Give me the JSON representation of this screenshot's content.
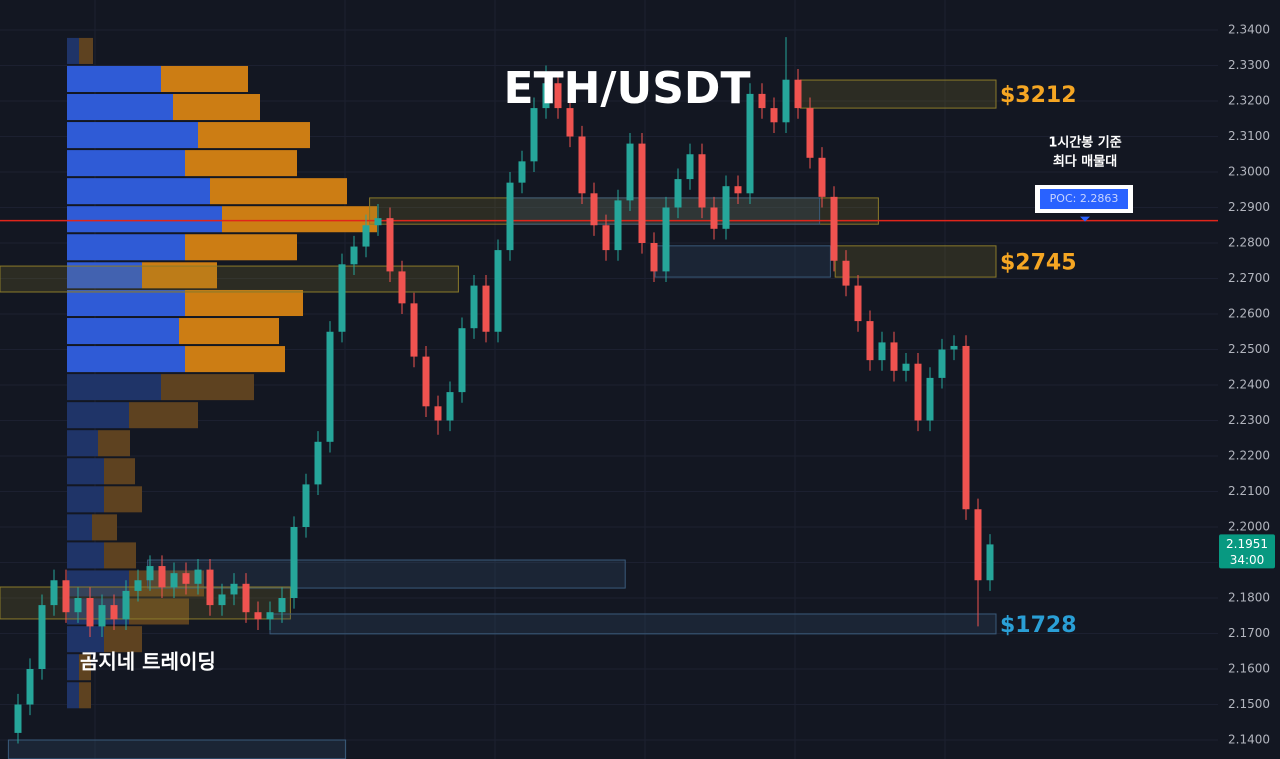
{
  "chart_data": {
    "type": "candlestick",
    "title": "ETH/USDT",
    "watermark": "곰지네 트레이딩",
    "up_color": "#26a69a",
    "down_color": "#ef5350",
    "ylim": [
      2.13465,
      2.34845
    ],
    "yticks": [
      {
        "value": 2.34,
        "label": "2.3400"
      },
      {
        "value": 2.33,
        "label": "2.3300"
      },
      {
        "value": 2.32,
        "label": "2.3200"
      },
      {
        "value": 2.31,
        "label": "2.3100"
      },
      {
        "value": 2.3,
        "label": "2.3000"
      },
      {
        "value": 2.29,
        "label": "2.2900"
      },
      {
        "value": 2.28,
        "label": "2.2800"
      },
      {
        "value": 2.27,
        "label": "2.2700"
      },
      {
        "value": 2.26,
        "label": "2.2600"
      },
      {
        "value": 2.25,
        "label": "2.2500"
      },
      {
        "value": 2.24,
        "label": "2.2400"
      },
      {
        "value": 2.23,
        "label": "2.2300"
      },
      {
        "value": 2.22,
        "label": "2.2200"
      },
      {
        "value": 2.21,
        "label": "2.2100"
      },
      {
        "value": 2.2,
        "label": "2.2000"
      },
      {
        "value": 2.19,
        "label": "2.1900"
      },
      {
        "value": 2.18,
        "label": "2.1800"
      },
      {
        "value": 2.17,
        "label": "2.1700"
      },
      {
        "value": 2.16,
        "label": "2.1600"
      },
      {
        "value": 2.15,
        "label": "2.1500"
      },
      {
        "value": 2.14,
        "label": "2.1400"
      }
    ],
    "grid": true,
    "open": [
      2.142,
      2.15,
      2.16,
      2.178,
      2.185,
      2.176,
      2.18,
      2.172,
      2.178,
      2.174,
      2.182,
      2.185,
      2.189,
      2.183,
      2.187,
      2.184,
      2.188,
      2.178,
      2.181,
      2.184,
      2.176,
      2.174,
      2.176,
      2.18,
      2.2,
      2.212,
      2.224,
      2.255,
      2.274,
      2.279,
      2.285,
      2.287,
      2.272,
      2.263,
      2.248,
      2.234,
      2.23,
      2.238,
      2.256,
      2.268,
      2.255,
      2.278,
      2.297,
      2.303,
      2.318,
      2.325,
      2.318,
      2.31,
      2.294,
      2.285,
      2.278,
      2.292,
      2.308,
      2.28,
      2.272,
      2.29,
      2.298,
      2.305,
      2.29,
      2.284,
      2.296,
      2.294,
      2.322,
      2.318,
      2.314,
      2.326,
      2.318,
      2.304,
      2.293,
      2.275,
      2.268,
      2.258,
      2.247,
      2.252,
      2.244,
      2.246,
      2.23,
      2.242,
      2.25,
      2.251,
      2.205,
      2.185
    ],
    "high": [
      2.153,
      2.163,
      2.181,
      2.188,
      2.188,
      2.183,
      2.183,
      2.181,
      2.181,
      2.185,
      2.188,
      2.192,
      2.192,
      2.19,
      2.19,
      2.191,
      2.191,
      2.184,
      2.187,
      2.187,
      2.179,
      2.179,
      2.183,
      2.203,
      2.215,
      2.227,
      2.258,
      2.277,
      2.282,
      2.288,
      2.291,
      2.29,
      2.275,
      2.266,
      2.251,
      2.237,
      2.241,
      2.259,
      2.271,
      2.271,
      2.281,
      2.3,
      2.306,
      2.321,
      2.33,
      2.328,
      2.321,
      2.313,
      2.297,
      2.288,
      2.295,
      2.311,
      2.311,
      2.283,
      2.293,
      2.301,
      2.308,
      2.308,
      2.293,
      2.299,
      2.299,
      2.325,
      2.325,
      2.321,
      2.338,
      2.329,
      2.321,
      2.307,
      2.296,
      2.278,
      2.271,
      2.261,
      2.255,
      2.255,
      2.249,
      2.249,
      2.245,
      2.253,
      2.254,
      2.254,
      2.208,
      2.198
    ],
    "low": [
      2.139,
      2.147,
      2.157,
      2.175,
      2.173,
      2.173,
      2.169,
      2.169,
      2.171,
      2.171,
      2.179,
      2.182,
      2.18,
      2.18,
      2.181,
      2.181,
      2.175,
      2.175,
      2.178,
      2.173,
      2.171,
      2.171,
      2.173,
      2.177,
      2.197,
      2.209,
      2.221,
      2.252,
      2.271,
      2.276,
      2.282,
      2.269,
      2.26,
      2.245,
      2.231,
      2.226,
      2.227,
      2.235,
      2.253,
      2.252,
      2.252,
      2.275,
      2.294,
      2.3,
      2.315,
      2.315,
      2.307,
      2.291,
      2.282,
      2.275,
      2.275,
      2.289,
      2.277,
      2.269,
      2.269,
      2.287,
      2.295,
      2.287,
      2.281,
      2.281,
      2.291,
      2.291,
      2.315,
      2.311,
      2.311,
      2.315,
      2.301,
      2.29,
      2.272,
      2.265,
      2.255,
      2.244,
      2.244,
      2.241,
      2.241,
      2.227,
      2.227,
      2.239,
      2.247,
      2.202,
      2.172,
      2.182
    ],
    "close": [
      2.15,
      2.16,
      2.178,
      2.185,
      2.176,
      2.18,
      2.172,
      2.178,
      2.174,
      2.182,
      2.185,
      2.189,
      2.183,
      2.187,
      2.184,
      2.188,
      2.178,
      2.181,
      2.184,
      2.176,
      2.174,
      2.176,
      2.18,
      2.2,
      2.212,
      2.224,
      2.255,
      2.274,
      2.279,
      2.285,
      2.287,
      2.272,
      2.263,
      2.248,
      2.234,
      2.23,
      2.238,
      2.256,
      2.268,
      2.255,
      2.278,
      2.297,
      2.303,
      2.318,
      2.325,
      2.318,
      2.31,
      2.294,
      2.285,
      2.278,
      2.292,
      2.308,
      2.28,
      2.272,
      2.29,
      2.298,
      2.305,
      2.29,
      2.284,
      2.296,
      2.294,
      2.322,
      2.318,
      2.314,
      2.326,
      2.318,
      2.304,
      2.293,
      2.275,
      2.268,
      2.258,
      2.247,
      2.252,
      2.244,
      2.246,
      2.23,
      2.242,
      2.25,
      2.251,
      2.205,
      2.185,
      2.1951
    ],
    "volume_profile": {
      "levels": [
        2.3341,
        2.3262,
        2.3183,
        2.3104,
        2.3025,
        2.2946,
        2.2867,
        2.2788,
        2.2709,
        2.2631,
        2.2552,
        2.2473,
        2.2394,
        2.2315,
        2.2236,
        2.2157,
        2.2078,
        2.1999,
        2.192,
        2.1841,
        2.1762,
        2.1684,
        2.1605,
        2.1526
      ],
      "buy": [
        12,
        94,
        106,
        131,
        118,
        143,
        155,
        118,
        75,
        118,
        112,
        118,
        94,
        62,
        31,
        37,
        37,
        25,
        37,
        62,
        62,
        37,
        12,
        12
      ],
      "sell": [
        14,
        87,
        87,
        112,
        112,
        137,
        155,
        112,
        75,
        118,
        100,
        100,
        93,
        69,
        32,
        31,
        38,
        25,
        32,
        75,
        60,
        38,
        12,
        12
      ],
      "buy_color": "#2f5bd6",
      "sell_color": "#cc7d14",
      "buy_color_dim": "#1f3468",
      "sell_color_dim": "#5e4220",
      "value_area": [
        1,
        11
      ]
    },
    "zones": [
      {
        "x": [
          65.2,
          81.5
        ],
        "y": [
          2.318,
          2.3259
        ],
        "color": "#8a7a2a",
        "label": "$3212",
        "label_color": "#f5a623"
      },
      {
        "x": [
          29.3,
          71.7
        ],
        "y": [
          2.2853,
          2.2927
        ],
        "color": "#8a7a2a"
      },
      {
        "x": [
          41,
          66.8
        ],
        "y": [
          2.2853,
          2.2927
        ],
        "color": "#3a5a7a"
      },
      {
        "x": [
          68.1,
          81.5
        ],
        "y": [
          2.2704,
          2.2792
        ],
        "color": "#8a7a2a",
        "label": "$2745",
        "label_color": "#f5a623"
      },
      {
        "x": [
          -1.5,
          36.7
        ],
        "y": [
          2.2662,
          2.2735
        ],
        "color": "#8a7a2a"
      },
      {
        "x": [
          53.1,
          67.7
        ],
        "y": [
          2.2704,
          2.2792
        ],
        "color": "#3a5a7a"
      },
      {
        "x": [
          10.8,
          50.6
        ],
        "y": [
          2.1828,
          2.1907
        ],
        "color": "#3a5a7a"
      },
      {
        "x": [
          -1.5,
          22.7
        ],
        "y": [
          2.1741,
          2.1831
        ],
        "color": "#8a7a2a"
      },
      {
        "x": [
          21,
          81.5
        ],
        "y": [
          2.1699,
          2.1755
        ],
        "color": "#3a5a7a",
        "label": "$1728",
        "label_color": "#2a9fd6"
      },
      {
        "x": [
          -0.8,
          27.3
        ],
        "y": [
          2.1347,
          2.14
        ],
        "color": "#3a5a7a"
      }
    ],
    "poc": {
      "value": 2.2863,
      "label": "POC: 2.2863",
      "note": [
        "1시간봉 기준",
        "최다 매물대"
      ],
      "color": "#e0251b"
    },
    "last_price": 2.1951,
    "countdown": "34:00"
  }
}
